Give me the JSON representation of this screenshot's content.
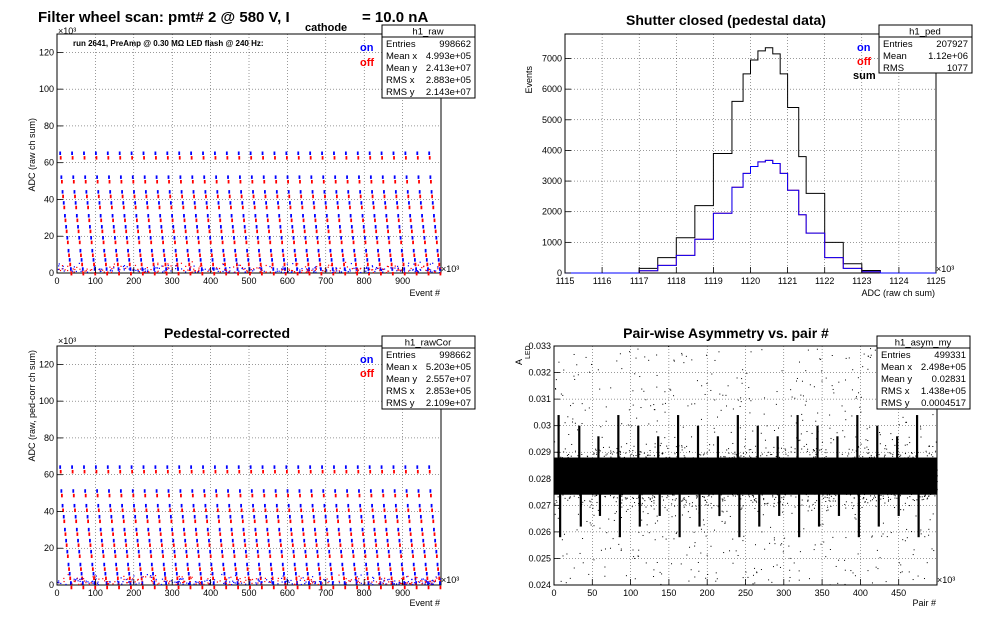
{
  "figure": {
    "suptitle_main": "Filter wheel scan: pmt#   2 @   580 V, I",
    "suptitle_sub": "cathode",
    "suptitle_tail": "= 10.0 nA"
  },
  "colors": {
    "on": "#0000ff",
    "off": "#ff0000",
    "sum": "#000000",
    "asym": "#000000"
  },
  "panels": {
    "raw": {
      "note": "run 2641, PreAmp @ 0.30 MΩ  LED flash @  240 Hz:",
      "ylabel": "ADC (raw ch sum)",
      "xlabel": "Event #",
      "yexp": "×10³",
      "xexp": "×10³",
      "legend": [
        "on",
        "off"
      ],
      "stats": {
        "name": "h1_raw",
        "rows": [
          {
            "k": "Entries",
            "v": "998662"
          },
          {
            "k": "Mean x",
            "v": "4.993e+05"
          },
          {
            "k": "Mean y",
            "v": "2.413e+07"
          },
          {
            "k": "RMS x",
            "v": "2.883e+05"
          },
          {
            "k": "RMS y",
            "v": "2.143e+07"
          }
        ]
      }
    },
    "ped": {
      "title": "Shutter closed (pedestal data)",
      "ylabel": "Events",
      "xlabel": "ADC (raw ch sum)",
      "xexp": "×10³",
      "legend": [
        "on",
        "off",
        "sum"
      ],
      "stats": {
        "name": "h1_ped",
        "rows": [
          {
            "k": "Entries",
            "v": "207927"
          },
          {
            "k": "Mean",
            "v": "1.12e+06"
          },
          {
            "k": "RMS",
            "v": "1077"
          }
        ]
      }
    },
    "cor": {
      "title": "Pedestal-corrected",
      "ylabel": "ADC (raw, ped-corr ch sum)",
      "xlabel": "Event #",
      "yexp": "×10³",
      "xexp": "×10³",
      "legend": [
        "on",
        "off"
      ],
      "stats": {
        "name": "h1_rawCor",
        "rows": [
          {
            "k": "Entries",
            "v": "998662"
          },
          {
            "k": "Mean x",
            "v": "5.203e+05"
          },
          {
            "k": "Mean y",
            "v": "2.557e+07"
          },
          {
            "k": "RMS x",
            "v": "2.853e+05"
          },
          {
            "k": "RMS y",
            "v": "2.109e+07"
          }
        ]
      }
    },
    "asym": {
      "title": "Pair-wise Asymmetry vs. pair #",
      "ylabel": "A",
      "ylabel_sub": "LED",
      "xlabel": "Pair #",
      "xexp": "×10³",
      "stats": {
        "name": "h1_asym_my",
        "rows": [
          {
            "k": "Entries",
            "v": "499331"
          },
          {
            "k": "Mean x",
            "v": "2.498e+05"
          },
          {
            "k": "Mean y",
            "v": "0.02831"
          },
          {
            "k": "RMS x",
            "v": "1.438e+05"
          },
          {
            "k": "RMS y",
            "v": "0.0004517"
          }
        ]
      }
    }
  },
  "chart_data": [
    {
      "id": "raw",
      "type": "scatter",
      "xlabel": "Event #",
      "ylabel": "ADC (raw ch sum)",
      "xlim": [
        0,
        1000
      ],
      "ylim": [
        0,
        130
      ],
      "xticks": [
        0,
        100,
        200,
        300,
        400,
        500,
        600,
        700,
        800,
        900
      ],
      "yticks": [
        0,
        20,
        40,
        60,
        80,
        100,
        120
      ],
      "band_levels": [
        65,
        52,
        44,
        38,
        31,
        25,
        19,
        12,
        7,
        2
      ],
      "series": [
        {
          "name": "on"
        },
        {
          "name": "off"
        }
      ]
    },
    {
      "id": "ped",
      "type": "line",
      "title": "Shutter closed (pedestal data)",
      "xlabel": "ADC (raw ch sum)",
      "ylabel": "Events",
      "xlim": [
        1115,
        1125
      ],
      "ylim": [
        0,
        7800
      ],
      "xticks": [
        1115,
        1116,
        1117,
        1118,
        1119,
        1120,
        1121,
        1122,
        1123,
        1124,
        1125
      ],
      "yticks": [
        0,
        1000,
        2000,
        3000,
        4000,
        5000,
        6000,
        7000
      ],
      "x": [
        1116.5,
        1117.0,
        1117.5,
        1118.0,
        1118.5,
        1119.0,
        1119.5,
        1119.8,
        1120.0,
        1120.2,
        1120.4,
        1120.6,
        1120.8,
        1121.0,
        1121.3,
        1121.5,
        1122.0,
        1122.5,
        1123.0,
        1123.5
      ],
      "series": [
        {
          "name": "sum",
          "values": [
            0,
            150,
            500,
            1150,
            2200,
            3900,
            5600,
            6500,
            6950,
            7250,
            7350,
            7150,
            6500,
            5400,
            3800,
            2600,
            1000,
            300,
            80,
            0
          ]
        },
        {
          "name": "on",
          "values": [
            0,
            75,
            250,
            575,
            1100,
            1950,
            2800,
            3250,
            3475,
            3625,
            3675,
            3575,
            3250,
            2700,
            1900,
            1300,
            500,
            150,
            40,
            0
          ]
        },
        {
          "name": "off",
          "values": [
            0,
            75,
            250,
            575,
            1100,
            1950,
            2800,
            3250,
            3475,
            3625,
            3675,
            3575,
            3250,
            2700,
            1900,
            1300,
            500,
            150,
            40,
            0
          ]
        }
      ]
    },
    {
      "id": "cor",
      "type": "scatter",
      "title": "Pedestal-corrected",
      "xlabel": "Event #",
      "ylabel": "ADC (raw, ped-corr ch sum)",
      "xlim": [
        0,
        1000
      ],
      "ylim": [
        0,
        130
      ],
      "xticks": [
        0,
        100,
        200,
        300,
        400,
        500,
        600,
        700,
        800,
        900
      ],
      "yticks": [
        0,
        20,
        40,
        60,
        80,
        100,
        120
      ],
      "band_levels": [
        64,
        51,
        43,
        37,
        30,
        24,
        18,
        11,
        6,
        1
      ],
      "series": [
        {
          "name": "on"
        },
        {
          "name": "off"
        }
      ]
    },
    {
      "id": "asym",
      "type": "scatter",
      "title": "Pair-wise Asymmetry vs. pair #",
      "xlabel": "Pair #",
      "ylabel": "A_LED",
      "xlim": [
        0,
        500
      ],
      "ylim": [
        0.024,
        0.033
      ],
      "xticks": [
        0,
        50,
        100,
        150,
        200,
        250,
        300,
        350,
        400,
        450
      ],
      "yticks": [
        0.024,
        0.025,
        0.026,
        0.027,
        0.028,
        0.029,
        0.03,
        0.031,
        0.032,
        0.033
      ],
      "center": 0.0281,
      "spike_x": [
        6,
        33,
        58,
        84,
        110,
        136,
        162,
        188,
        214,
        240,
        266,
        292,
        318,
        344,
        370,
        396,
        422,
        448,
        474
      ]
    }
  ]
}
